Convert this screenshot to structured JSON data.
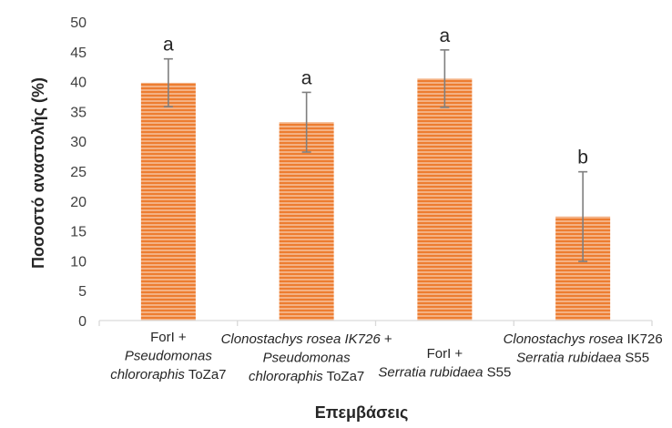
{
  "chart_data": {
    "type": "bar",
    "title": "",
    "xlabel": "Επεμβάσεις",
    "ylabel": "Ποσοστό αναστολής (%)",
    "ylim": [
      0,
      50
    ],
    "yticks": [
      0,
      5,
      10,
      15,
      20,
      25,
      30,
      35,
      40,
      45,
      50
    ],
    "grid": false,
    "bar_color": "#f4b183",
    "stripe_color": "#ed7d31",
    "error_color": "#7f7f7f",
    "categories": [
      "ForI + Pseudomonas chlororaphis ToZa7",
      "Clonostachys rosea IK726 + Pseudomonas chlororaphis ToZa7",
      "ForI + Serratia rubidaea S55",
      "Clonostachys rosea IK726 Serratia rubidaea S55"
    ],
    "category_lines": [
      [
        [
          {
            "t": "ForI +",
            "i": false
          }
        ],
        [
          {
            "t": "Pseudomonas",
            "i": true
          }
        ],
        [
          {
            "t": "chlororaphis",
            "i": true
          },
          {
            "t": " ToZa7",
            "i": false
          }
        ]
      ],
      [
        [
          {
            "t": "Clonostachys rosea IK726",
            "i": true
          },
          {
            "t": " +",
            "i": false
          }
        ],
        [
          {
            "t": "Pseudomonas",
            "i": true
          }
        ],
        [
          {
            "t": "chlororaphis",
            "i": true
          },
          {
            "t": " ToZa7",
            "i": false
          }
        ]
      ],
      [
        [
          {
            "t": "ForI +",
            "i": false
          }
        ],
        [
          {
            "t": "Serratia rubidaea",
            "i": true
          },
          {
            "t": " S55",
            "i": false
          }
        ]
      ],
      [
        [
          {
            "t": "Clonostachys rosea",
            "i": true
          },
          {
            "t": " IK726",
            "i": false
          }
        ],
        [
          {
            "t": "Serratia rubidaea",
            "i": true
          },
          {
            "t": " S55",
            "i": false
          }
        ]
      ]
    ],
    "values": [
      39.8,
      33.2,
      40.5,
      17.4
    ],
    "errors": [
      4.0,
      5.0,
      4.8,
      7.5
    ],
    "significance": [
      "a",
      "a",
      "a",
      "b"
    ]
  }
}
